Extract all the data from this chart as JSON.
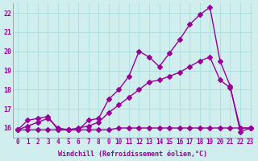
{
  "xlabel": "Windchill (Refroidissement éolien,°C)",
  "xlim": [
    0,
    23
  ],
  "ylim": [
    15.5,
    22.5
  ],
  "yticks": [
    16,
    17,
    18,
    19,
    20,
    21,
    22
  ],
  "xticks": [
    0,
    1,
    2,
    3,
    4,
    5,
    6,
    7,
    8,
    9,
    10,
    11,
    12,
    13,
    14,
    15,
    16,
    17,
    18,
    19,
    20,
    21,
    22,
    23
  ],
  "background_color": "#d0eeee",
  "grid_color": "#aadddd",
  "line_color": "#990099",
  "series": {
    "top": [
      15.9,
      16.4,
      16.5,
      16.6,
      15.9,
      15.9,
      15.9,
      16.4,
      16.5,
      17.5,
      18.0,
      18.7,
      20.0,
      19.7,
      19.2,
      19.9,
      20.6,
      21.4,
      21.9,
      22.3,
      19.5,
      18.2,
      15.8,
      16.0
    ],
    "mid": [
      15.9,
      16.1,
      16.3,
      16.5,
      16.0,
      15.9,
      16.0,
      16.1,
      16.3,
      16.8,
      17.2,
      17.6,
      18.0,
      18.4,
      18.5,
      18.7,
      18.9,
      19.2,
      19.5,
      19.7,
      18.5,
      18.1,
      16.0,
      16.0
    ],
    "bottom": [
      15.9,
      15.9,
      15.9,
      15.9,
      15.9,
      15.9,
      15.9,
      15.9,
      15.9,
      15.9,
      16.0,
      16.0,
      16.0,
      16.0,
      16.0,
      16.0,
      16.0,
      16.0,
      16.0,
      16.0,
      16.0,
      16.0,
      16.0,
      16.0
    ]
  }
}
